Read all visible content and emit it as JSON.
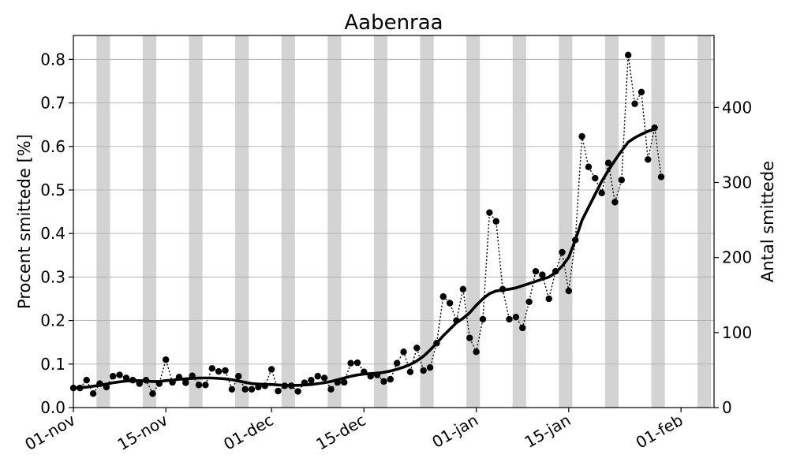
{
  "chart_data": {
    "type": "line",
    "title": "Aabenraa",
    "ylabel": "Procent smittede [%]",
    "y2label": "Antal smittede",
    "xlim": [
      "2020-11-01",
      "2021-02-06"
    ],
    "ylim": [
      0,
      0.855
    ],
    "y2lim": [
      0,
      496
    ],
    "x_ticks": [
      {
        "date": "2020-11-01",
        "label": "01-nov"
      },
      {
        "date": "2020-11-15",
        "label": "15-nov"
      },
      {
        "date": "2020-12-01",
        "label": "01-dec"
      },
      {
        "date": "2020-12-15",
        "label": "15-dec"
      },
      {
        "date": "2021-01-01",
        "label": "01-jan"
      },
      {
        "date": "2021-01-15",
        "label": "15-jan"
      },
      {
        "date": "2021-02-01",
        "label": "01-feb"
      }
    ],
    "y_ticks": [
      "0.0",
      "0.1",
      "0.2",
      "0.3",
      "0.4",
      "0.5",
      "0.6",
      "0.7",
      "0.8"
    ],
    "y2_ticks": [
      "0",
      "100",
      "200",
      "300",
      "400"
    ],
    "grid": true,
    "shaded_weekends": [
      "2020-11-05",
      "2020-11-12",
      "2020-11-19",
      "2020-11-26",
      "2020-12-03",
      "2020-12-10",
      "2020-12-17",
      "2020-12-24",
      "2020-12-31",
      "2021-01-07",
      "2021-01-14",
      "2021-01-21",
      "2021-01-28",
      "2021-02-04"
    ],
    "series": [
      {
        "kind": "daily_points",
        "style": "dotted line with black markers",
        "start": "2020-11-01",
        "values": [
          0.045,
          0.045,
          0.063,
          0.032,
          0.055,
          0.047,
          0.072,
          0.075,
          0.068,
          0.063,
          0.055,
          0.063,
          0.032,
          0.055,
          0.11,
          0.058,
          0.07,
          0.057,
          0.073,
          0.052,
          0.052,
          0.09,
          0.083,
          0.085,
          0.042,
          0.072,
          0.042,
          0.042,
          0.047,
          0.05,
          0.088,
          0.038,
          0.05,
          0.05,
          0.037,
          0.057,
          0.063,
          0.072,
          0.068,
          0.042,
          0.058,
          0.058,
          0.102,
          0.103,
          0.082,
          0.072,
          0.075,
          0.06,
          0.065,
          0.102,
          0.128,
          0.082,
          0.137,
          0.085,
          0.092,
          0.148,
          0.255,
          0.24,
          0.2,
          0.272,
          0.16,
          0.128,
          0.203,
          0.448,
          0.428,
          0.272,
          0.203,
          0.208,
          0.183,
          0.243,
          0.313,
          0.305,
          0.25,
          0.313,
          0.357,
          0.268,
          0.385,
          0.623,
          0.553,
          0.527,
          0.493,
          0.562,
          0.472,
          0.523,
          0.81,
          0.698,
          0.725,
          0.57,
          0.643,
          0.53
        ]
      },
      {
        "kind": "rolling_average",
        "style": "thick solid black line",
        "start": "2020-11-01",
        "values": [
          0.045,
          0.046,
          0.047,
          0.049,
          0.051,
          0.054,
          0.057,
          0.059,
          0.061,
          0.062,
          0.062,
          0.061,
          0.06,
          0.06,
          0.062,
          0.063,
          0.065,
          0.066,
          0.067,
          0.068,
          0.068,
          0.068,
          0.067,
          0.066,
          0.064,
          0.061,
          0.058,
          0.055,
          0.054,
          0.053,
          0.053,
          0.052,
          0.051,
          0.051,
          0.051,
          0.052,
          0.053,
          0.055,
          0.057,
          0.06,
          0.064,
          0.068,
          0.072,
          0.075,
          0.077,
          0.078,
          0.079,
          0.081,
          0.084,
          0.088,
          0.093,
          0.099,
          0.107,
          0.118,
          0.132,
          0.148,
          0.165,
          0.18,
          0.195,
          0.205,
          0.218,
          0.235,
          0.25,
          0.262,
          0.268,
          0.27,
          0.272,
          0.275,
          0.28,
          0.285,
          0.29,
          0.295,
          0.3,
          0.31,
          0.325,
          0.345,
          0.385,
          0.43,
          0.46,
          0.49,
          0.52,
          0.545,
          0.568,
          0.59,
          0.61,
          0.62,
          0.628,
          0.635,
          0.64
        ]
      }
    ]
  }
}
